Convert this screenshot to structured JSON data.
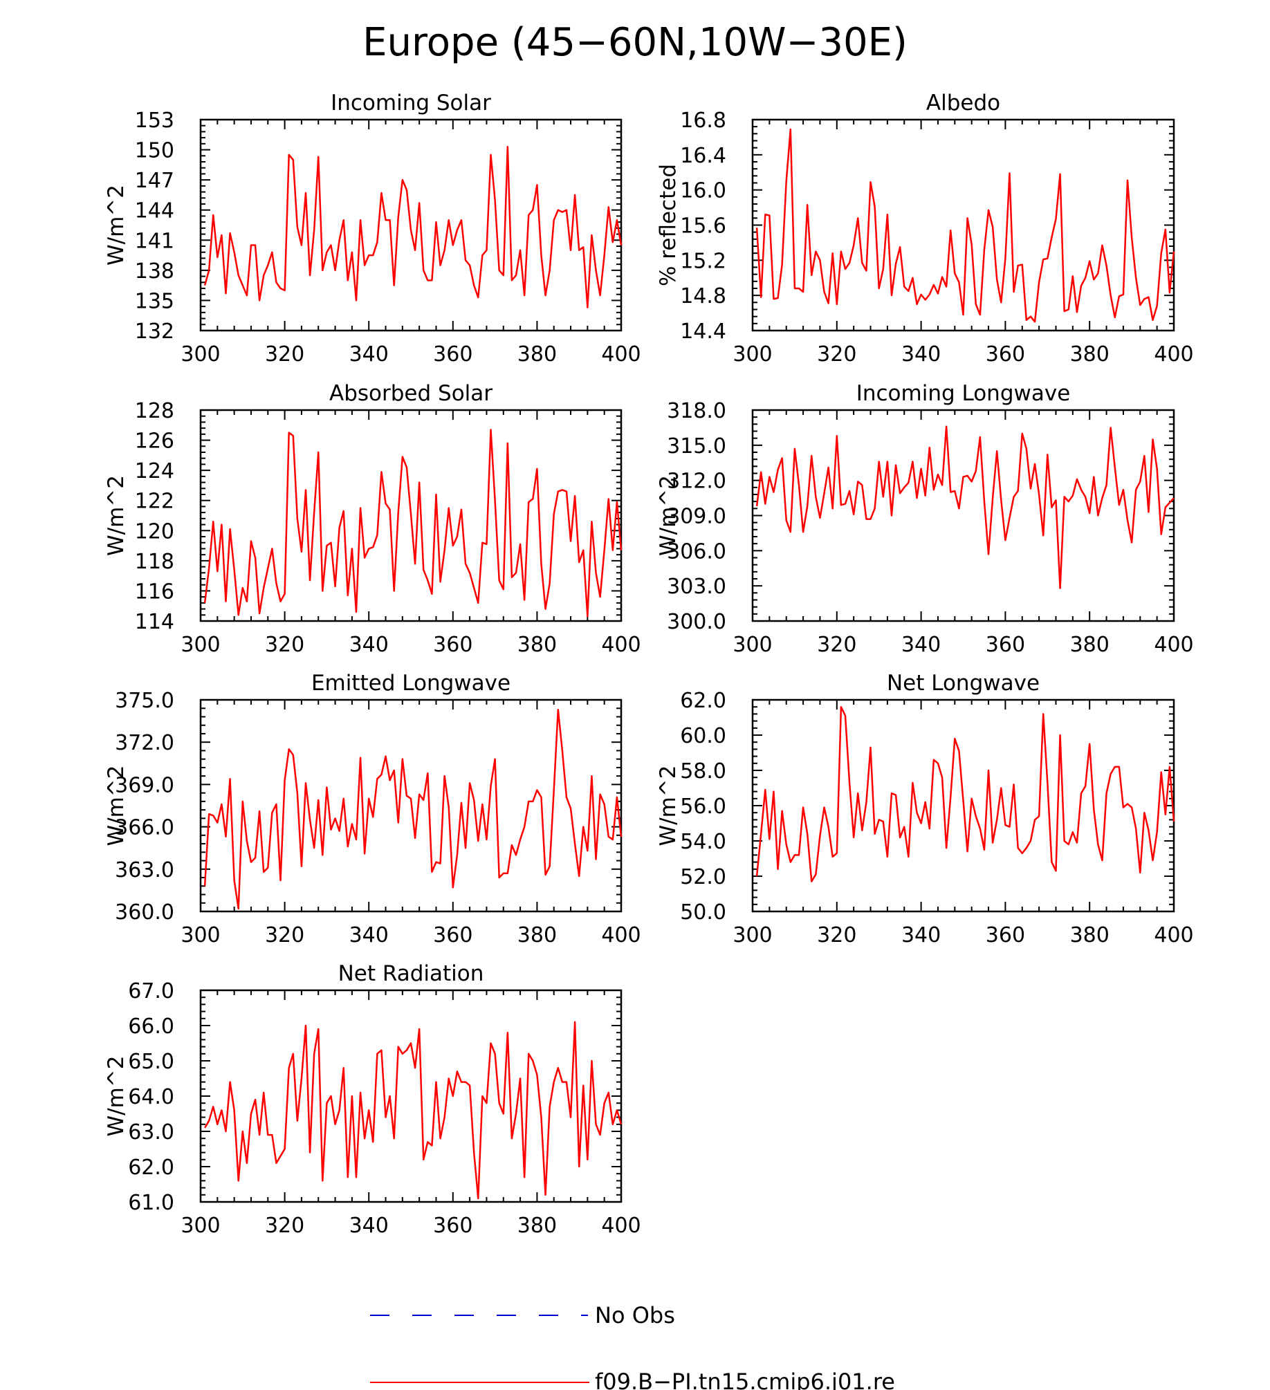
{
  "figure": {
    "title": "Europe (45−60N,10W−30E)",
    "line_color": "#ff0000",
    "obs_color": "#0000cd",
    "legend": [
      {
        "label": "No Obs",
        "style": "dashed",
        "color": "#0000cd"
      },
      {
        "label": "f09.B−PI.tn15.cmip6.j01.re",
        "style": "solid",
        "color": "#ff0000"
      }
    ]
  },
  "chart_data": [
    {
      "type": "line",
      "title": "Incoming Solar",
      "ylabel": "W/m^2",
      "xlim": [
        300,
        400
      ],
      "ylim": [
        132,
        153
      ],
      "xticks": [
        "300",
        "320",
        "340",
        "360",
        "380",
        "400"
      ],
      "yticks": [
        "132",
        "135",
        "138",
        "141",
        "144",
        "147",
        "150",
        "153"
      ],
      "series": [
        {
          "x_start": 301,
          "x_step": 1,
          "values": [
            136.5,
            138.0,
            143.5,
            139.3,
            141.5,
            135.7,
            141.7,
            139.8,
            137.5,
            136.5,
            135.5,
            140.5,
            140.5,
            135.0,
            137.5,
            138.5,
            139.8,
            136.8,
            136.2,
            136.0,
            149.5,
            149.0,
            142.3,
            140.5,
            145.7,
            137.5,
            142.0,
            149.3,
            138.0,
            139.8,
            140.5,
            138.0,
            141.0,
            143.0,
            137.0,
            139.8,
            135.0,
            143.0,
            138.5,
            139.5,
            139.5,
            140.8,
            145.7,
            143.0,
            143.0,
            136.5,
            143.3,
            147.0,
            146.0,
            142.0,
            140.0,
            144.7,
            138.0,
            137.0,
            137.0,
            142.8,
            138.5,
            140.0,
            143.0,
            140.5,
            142.0,
            143.0,
            139.0,
            138.5,
            136.5,
            135.3,
            139.5,
            140.0,
            149.5,
            145.0,
            138.0,
            137.5,
            150.3,
            137.0,
            137.5,
            140.0,
            135.5,
            143.5,
            144.0,
            146.5,
            139.5,
            135.5,
            138.0,
            143.0,
            144.0,
            143.8,
            144.0,
            140.0,
            145.5,
            140.0,
            140.3,
            134.3,
            141.5,
            138.0,
            135.5,
            139.5,
            144.3,
            140.8,
            143.0,
            140.5
          ]
        }
      ]
    },
    {
      "type": "line",
      "title": "Albedo",
      "ylabel": "% reflected",
      "xlim": [
        300,
        400
      ],
      "ylim": [
        14.4,
        16.8
      ],
      "xticks": [
        "300",
        "320",
        "340",
        "360",
        "380",
        "400"
      ],
      "yticks": [
        "14.4",
        "14.8",
        "15.2",
        "15.6",
        "16.0",
        "16.4",
        "16.8"
      ],
      "series": [
        {
          "x_start": 301,
          "x_step": 1,
          "values": [
            15.57,
            14.78,
            15.72,
            15.71,
            14.76,
            14.77,
            15.15,
            16.1,
            16.69,
            14.88,
            14.88,
            14.84,
            15.83,
            15.03,
            15.3,
            15.2,
            14.84,
            14.71,
            15.28,
            14.7,
            15.3,
            15.1,
            15.17,
            15.37,
            15.68,
            15.17,
            15.08,
            16.09,
            15.81,
            14.88,
            15.1,
            15.72,
            14.8,
            15.16,
            15.35,
            14.9,
            14.85,
            15.0,
            14.7,
            14.81,
            14.75,
            14.81,
            14.92,
            14.82,
            15.01,
            14.9,
            15.54,
            15.05,
            14.95,
            14.58,
            15.68,
            15.38,
            14.7,
            14.58,
            15.32,
            15.77,
            15.58,
            14.98,
            14.72,
            15.22,
            16.19,
            14.84,
            15.14,
            15.15,
            14.52,
            14.56,
            14.5,
            14.95,
            15.21,
            15.22,
            15.46,
            15.67,
            16.18,
            14.62,
            14.64,
            15.02,
            14.61,
            14.91,
            15.0,
            15.19,
            14.98,
            15.05,
            15.37,
            15.14,
            14.8,
            14.55,
            14.79,
            14.81,
            16.11,
            15.46,
            15.0,
            14.69,
            14.76,
            14.78,
            14.52,
            14.68,
            15.28,
            15.55,
            14.83,
            15.3
          ]
        }
      ]
    },
    {
      "type": "line",
      "title": "Absorbed Solar",
      "ylabel": "W/m^2",
      "xlim": [
        300,
        400
      ],
      "ylim": [
        114,
        128
      ],
      "xticks": [
        "300",
        "320",
        "340",
        "360",
        "380",
        "400"
      ],
      "yticks": [
        "114",
        "116",
        "118",
        "120",
        "122",
        "124",
        "126",
        "128"
      ],
      "series": [
        {
          "x_start": 301,
          "x_step": 1,
          "values": [
            115.2,
            117.5,
            120.6,
            117.3,
            120.4,
            115.3,
            120.1,
            117.4,
            114.4,
            116.2,
            115.3,
            119.3,
            118.2,
            114.5,
            116.2,
            117.5,
            118.8,
            116.5,
            115.3,
            115.8,
            126.5,
            126.3,
            120.8,
            118.6,
            122.7,
            116.7,
            121.2,
            125.2,
            116.0,
            119.0,
            119.2,
            116.3,
            120.2,
            121.3,
            115.7,
            118.8,
            114.6,
            121.5,
            118.2,
            118.8,
            118.9,
            119.7,
            123.9,
            121.8,
            121.4,
            116.0,
            121.2,
            124.9,
            124.2,
            121.1,
            117.8,
            123.2,
            117.4,
            116.7,
            115.8,
            122.4,
            116.6,
            118.7,
            121.5,
            119.0,
            119.6,
            121.4,
            117.8,
            117.2,
            116.2,
            115.2,
            119.2,
            119.1,
            126.7,
            122.0,
            116.7,
            116.1,
            125.8,
            116.9,
            117.2,
            119.1,
            115.4,
            121.9,
            122.1,
            124.1,
            117.8,
            114.8,
            116.5,
            121.1,
            122.6,
            122.7,
            122.6,
            119.3,
            122.3,
            117.9,
            118.7,
            114.3,
            120.6,
            117.2,
            115.6,
            118.7,
            122.1,
            118.7,
            121.9,
            118.7
          ]
        }
      ]
    },
    {
      "type": "line",
      "title": "Incoming Longwave",
      "ylabel": "W/m^2",
      "xlim": [
        300,
        400
      ],
      "ylim": [
        300,
        318
      ],
      "xticks": [
        "300",
        "320",
        "340",
        "360",
        "380",
        "400"
      ],
      "yticks": [
        "300.0",
        "303.0",
        "306.0",
        "309.0",
        "312.0",
        "315.0",
        "318.0"
      ],
      "series": [
        {
          "x_start": 301,
          "x_step": 1,
          "values": [
            309.8,
            312.7,
            310.0,
            312.3,
            311.0,
            312.9,
            313.9,
            308.6,
            307.6,
            314.7,
            311.6,
            307.6,
            309.8,
            314.1,
            310.6,
            308.8,
            310.9,
            313.1,
            309.6,
            315.8,
            309.9,
            310.0,
            311.1,
            309.1,
            311.9,
            311.6,
            308.7,
            308.7,
            309.6,
            313.6,
            310.6,
            313.6,
            309.0,
            313.3,
            310.9,
            311.4,
            311.8,
            313.6,
            310.5,
            313.0,
            310.7,
            314.8,
            311.2,
            312.5,
            311.6,
            316.6,
            311.0,
            311.1,
            309.6,
            312.3,
            312.4,
            311.9,
            312.8,
            315.7,
            310.2,
            305.7,
            310.5,
            314.5,
            310.3,
            306.9,
            308.8,
            310.6,
            311.1,
            316.0,
            314.7,
            311.3,
            313.4,
            310.8,
            307.3,
            314.2,
            309.7,
            310.3,
            302.8,
            310.6,
            310.2,
            310.7,
            312.1,
            311.2,
            310.6,
            309.2,
            312.3,
            309.0,
            310.5,
            311.6,
            316.5,
            313.1,
            309.9,
            311.2,
            308.6,
            306.7,
            311.2,
            311.9,
            314.1,
            309.3,
            315.5,
            313.0,
            307.4,
            309.7,
            310.1,
            310.5
          ]
        }
      ]
    },
    {
      "type": "line",
      "title": "Emitted Longwave",
      "ylabel": "W/m^2",
      "xlim": [
        300,
        400
      ],
      "ylim": [
        360,
        375
      ],
      "xticks": [
        "300",
        "320",
        "340",
        "360",
        "380",
        "400"
      ],
      "yticks": [
        "360.0",
        "363.0",
        "366.0",
        "369.0",
        "372.0",
        "375.0"
      ],
      "series": [
        {
          "x_start": 301,
          "x_step": 1,
          "values": [
            361.8,
            366.9,
            366.8,
            366.3,
            367.6,
            365.3,
            369.4,
            362.2,
            360.2,
            367.8,
            365.0,
            363.5,
            363.8,
            367.1,
            362.8,
            363.1,
            367.0,
            367.6,
            362.2,
            369.3,
            371.5,
            371.1,
            368.4,
            363.2,
            369.1,
            366.5,
            364.5,
            367.9,
            364.0,
            368.8,
            365.8,
            366.6,
            365.7,
            368.0,
            364.6,
            366.2,
            365.1,
            370.9,
            364.1,
            368.0,
            366.7,
            369.4,
            369.7,
            371.0,
            369.3,
            370.0,
            366.3,
            370.8,
            368.2,
            368.0,
            365.2,
            368.3,
            367.9,
            369.8,
            362.8,
            363.5,
            363.4,
            369.6,
            367.4,
            361.7,
            364.0,
            367.7,
            364.5,
            369.1,
            367.9,
            365.0,
            367.6,
            365.1,
            368.9,
            370.8,
            362.4,
            362.7,
            362.7,
            364.7,
            364.0,
            365.1,
            366.0,
            367.8,
            367.8,
            368.6,
            368.1,
            362.6,
            363.2,
            368.6,
            374.3,
            371.4,
            368.1,
            367.3,
            364.8,
            362.5,
            366.0,
            364.3,
            369.6,
            363.7,
            368.3,
            367.6,
            365.3,
            365.1,
            368.1,
            365.3
          ]
        }
      ]
    },
    {
      "type": "line",
      "title": "Net Longwave",
      "ylabel": "W/m^2",
      "xlim": [
        300,
        400
      ],
      "ylim": [
        50,
        62
      ],
      "xticks": [
        "300",
        "320",
        "340",
        "360",
        "380",
        "400"
      ],
      "yticks": [
        "50.0",
        "52.0",
        "54.0",
        "56.0",
        "58.0",
        "60.0",
        "62.0"
      ],
      "series": [
        {
          "x_start": 301,
          "x_step": 1,
          "values": [
            52.0,
            54.4,
            56.9,
            54.1,
            56.8,
            52.4,
            55.7,
            53.8,
            52.8,
            53.2,
            53.2,
            55.9,
            54.4,
            51.7,
            52.1,
            54.3,
            55.9,
            54.8,
            53.1,
            53.3,
            61.6,
            61.1,
            57.3,
            54.2,
            56.7,
            54.6,
            56.2,
            59.3,
            54.4,
            55.2,
            55.1,
            53.1,
            56.7,
            56.6,
            54.2,
            54.8,
            53.1,
            57.3,
            55.6,
            55.0,
            56.2,
            54.7,
            58.6,
            58.4,
            57.6,
            53.6,
            56.5,
            59.8,
            59.1,
            56.3,
            53.4,
            56.4,
            55.4,
            54.7,
            53.5,
            58.0,
            53.9,
            55.2,
            57.0,
            54.9,
            54.8,
            57.2,
            53.6,
            53.3,
            53.6,
            54.0,
            55.2,
            55.4,
            61.2,
            57.3,
            52.8,
            52.3,
            60.0,
            54.0,
            53.8,
            54.5,
            53.9,
            56.7,
            57.1,
            59.5,
            55.8,
            53.8,
            52.9,
            56.7,
            57.8,
            58.2,
            58.2,
            55.9,
            56.1,
            55.9,
            54.7,
            52.2,
            55.6,
            54.6,
            52.9,
            54.5,
            57.9,
            55.5,
            58.2,
            55.1
          ]
        }
      ]
    },
    {
      "type": "line",
      "title": "Net Radiation",
      "ylabel": "W/m^2",
      "xlim": [
        300,
        400
      ],
      "ylim": [
        61,
        67
      ],
      "xticks": [
        "300",
        "320",
        "340",
        "360",
        "380",
        "400"
      ],
      "yticks": [
        "61.0",
        "62.0",
        "63.0",
        "64.0",
        "65.0",
        "66.0",
        "67.0"
      ],
      "series": [
        {
          "x_start": 301,
          "x_step": 1,
          "values": [
            63.1,
            63.3,
            63.7,
            63.2,
            63.6,
            63.0,
            64.4,
            63.6,
            61.6,
            63.0,
            62.1,
            63.5,
            63.9,
            62.9,
            64.1,
            62.9,
            62.9,
            62.1,
            62.3,
            62.5,
            64.8,
            65.2,
            63.3,
            64.5,
            66.0,
            62.4,
            65.2,
            65.9,
            61.6,
            63.8,
            64.0,
            63.2,
            63.6,
            64.8,
            61.7,
            64.0,
            61.7,
            64.1,
            62.8,
            63.6,
            62.7,
            65.2,
            65.3,
            63.4,
            64.0,
            62.8,
            65.4,
            65.2,
            65.3,
            65.5,
            64.8,
            65.9,
            62.2,
            62.7,
            62.6,
            64.4,
            62.8,
            63.4,
            64.5,
            64.0,
            64.7,
            64.4,
            64.4,
            64.3,
            62.4,
            61.1,
            64.0,
            63.8,
            65.5,
            65.2,
            63.8,
            63.5,
            65.8,
            62.8,
            63.5,
            64.5,
            61.7,
            65.2,
            65.0,
            64.6,
            63.4,
            61.2,
            63.7,
            64.4,
            64.8,
            64.4,
            64.4,
            63.4,
            66.1,
            62.0,
            64.3,
            62.2,
            65.0,
            63.2,
            62.9,
            63.8,
            64.1,
            63.2,
            63.6,
            63.2
          ]
        }
      ]
    }
  ]
}
